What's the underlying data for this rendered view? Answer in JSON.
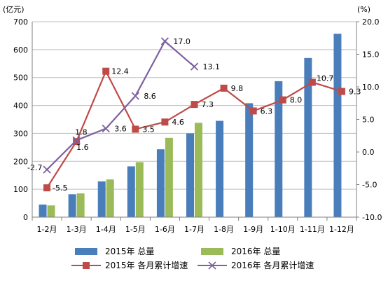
{
  "chart_data": {
    "type": "bar",
    "title": "",
    "left_axis_unit": "(亿元)",
    "right_axis_unit": "(%)",
    "categories": [
      "1-2月",
      "1-3月",
      "1-4月",
      "1-5月",
      "1-6月",
      "1-7月",
      "1-8月",
      "1-9月",
      "1-10月",
      "1-11月",
      "1-12月"
    ],
    "left_axis": {
      "min": 0,
      "max": 700,
      "ticks": [
        "0",
        "100",
        "200",
        "300",
        "400",
        "500",
        "600",
        "700"
      ]
    },
    "right_axis": {
      "min": -10,
      "max": 20,
      "ticks": [
        "-10.0",
        "-5.0",
        "0.0",
        "5.0",
        "10.0",
        "15.0",
        "20.0"
      ]
    },
    "bar_series": [
      {
        "name": "2015年 总量",
        "color": "#4a7ebb",
        "values": [
          45,
          82,
          128,
          182,
          243,
          300,
          345,
          408,
          487,
          570,
          657
        ]
      },
      {
        "name": "2016年 总量",
        "color": "#9bbb59",
        "values": [
          42,
          85,
          135,
          197,
          284,
          338,
          null,
          null,
          null,
          null,
          null
        ]
      }
    ],
    "line_series": [
      {
        "name": "2015年 各月累计增速",
        "color": "#be4b48",
        "marker": "square",
        "values": [
          -5.5,
          1.6,
          12.4,
          3.5,
          4.6,
          7.3,
          9.8,
          6.3,
          8.0,
          10.7,
          9.3
        ],
        "labels": [
          "-5.5",
          "1.6",
          "12.4",
          "3.5",
          "4.6",
          "7.3",
          "9.8",
          "6.3",
          "8.0",
          "10.7",
          "9.3"
        ]
      },
      {
        "name": "2016年 各月累计增速",
        "color": "#7d60a0",
        "marker": "x",
        "values": [
          -2.7,
          1.8,
          3.6,
          8.6,
          17.0,
          13.1,
          null,
          null,
          null,
          null,
          null
        ],
        "labels": [
          "-2.7",
          "1.8",
          "3.6",
          "8.6",
          "17.0",
          "13.1",
          "",
          "",
          "",
          "",
          ""
        ]
      }
    ],
    "grid": true,
    "legend_position": "bottom"
  }
}
